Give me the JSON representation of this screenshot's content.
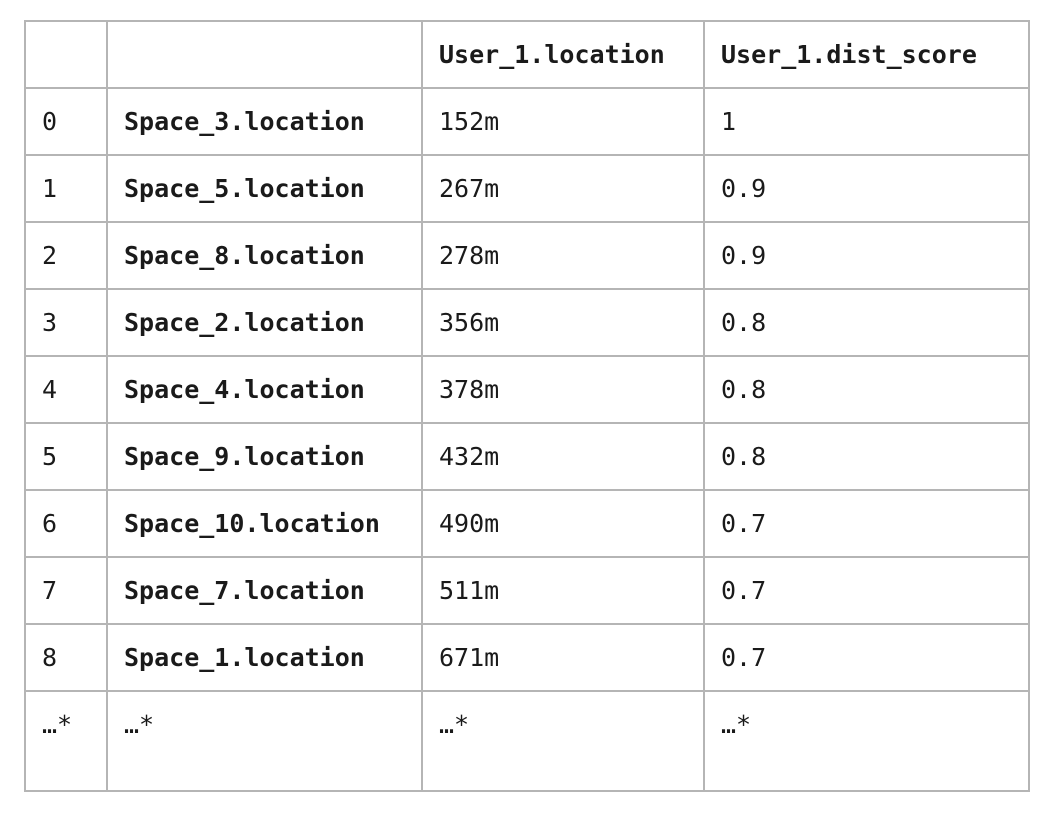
{
  "table": {
    "headers": [
      "",
      "",
      "User_1.location",
      "User_1.dist_score"
    ],
    "rows": [
      {
        "index": "0",
        "label": "Space_3.location",
        "location": "152m",
        "score": "1"
      },
      {
        "index": "1",
        "label": "Space_5.location",
        "location": "267m",
        "score": "0.9"
      },
      {
        "index": "2",
        "label": "Space_8.location",
        "location": "278m",
        "score": "0.9"
      },
      {
        "index": "3",
        "label": "Space_2.location",
        "location": "356m",
        "score": "0.8"
      },
      {
        "index": "4",
        "label": "Space_4.location",
        "location": "378m",
        "score": "0.8"
      },
      {
        "index": "5",
        "label": "Space_9.location",
        "location": "432m",
        "score": "0.8"
      },
      {
        "index": "6",
        "label": "Space_10.location",
        "location": "490m",
        "score": "0.7"
      },
      {
        "index": "7",
        "label": "Space_7.location",
        "location": "511m",
        "score": "0.7"
      },
      {
        "index": "8",
        "label": "Space_1.location",
        "location": "671m",
        "score": "0.7"
      },
      {
        "index": "…*",
        "label": "…*",
        "location": "…*",
        "score": "…*"
      }
    ]
  }
}
